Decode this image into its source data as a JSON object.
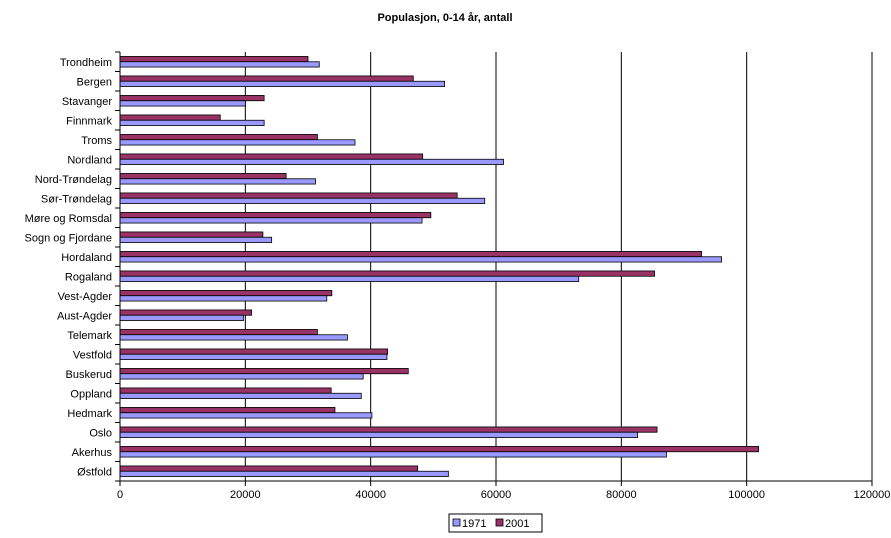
{
  "chart_data": {
    "type": "bar",
    "orientation": "horizontal",
    "title": "Populasjon, 0-14 år, antall",
    "xlabel": "",
    "ylabel": "",
    "xlim": [
      0,
      120000
    ],
    "xticks": [
      0,
      20000,
      40000,
      60000,
      80000,
      100000,
      120000
    ],
    "grid": "vertical-major",
    "legend": "bottom-center",
    "categories": [
      "Trondheim",
      "Bergen",
      "Stavanger",
      "Finnmark",
      "Troms",
      "Nordland",
      "Nord-Trøndelag",
      "Sør-Trøndelag",
      "Møre og Romsdal",
      "Sogn og Fjordane",
      "Hordaland",
      "Rogaland",
      "Vest-Agder",
      "Aust-Agder",
      "Telemark",
      "Vestfold",
      "Buskerud",
      "Oppland",
      "Hedmark",
      "Oslo",
      "Akerhus",
      "Østfold"
    ],
    "series": [
      {
        "name": "1971",
        "color": "#9999FF",
        "values": [
          31800,
          51800,
          20000,
          23000,
          37500,
          61200,
          31200,
          58200,
          48200,
          24200,
          96000,
          73200,
          33000,
          19700,
          36300,
          42600,
          38800,
          38500,
          40200,
          82600,
          87200,
          52400
        ]
      },
      {
        "name": "2001",
        "color": "#993366",
        "values": [
          30000,
          46800,
          23000,
          16000,
          31500,
          48300,
          26500,
          53800,
          49600,
          22800,
          92800,
          85300,
          33800,
          21000,
          31500,
          42700,
          46000,
          33700,
          34300,
          85700,
          101900,
          47500
        ]
      }
    ]
  }
}
